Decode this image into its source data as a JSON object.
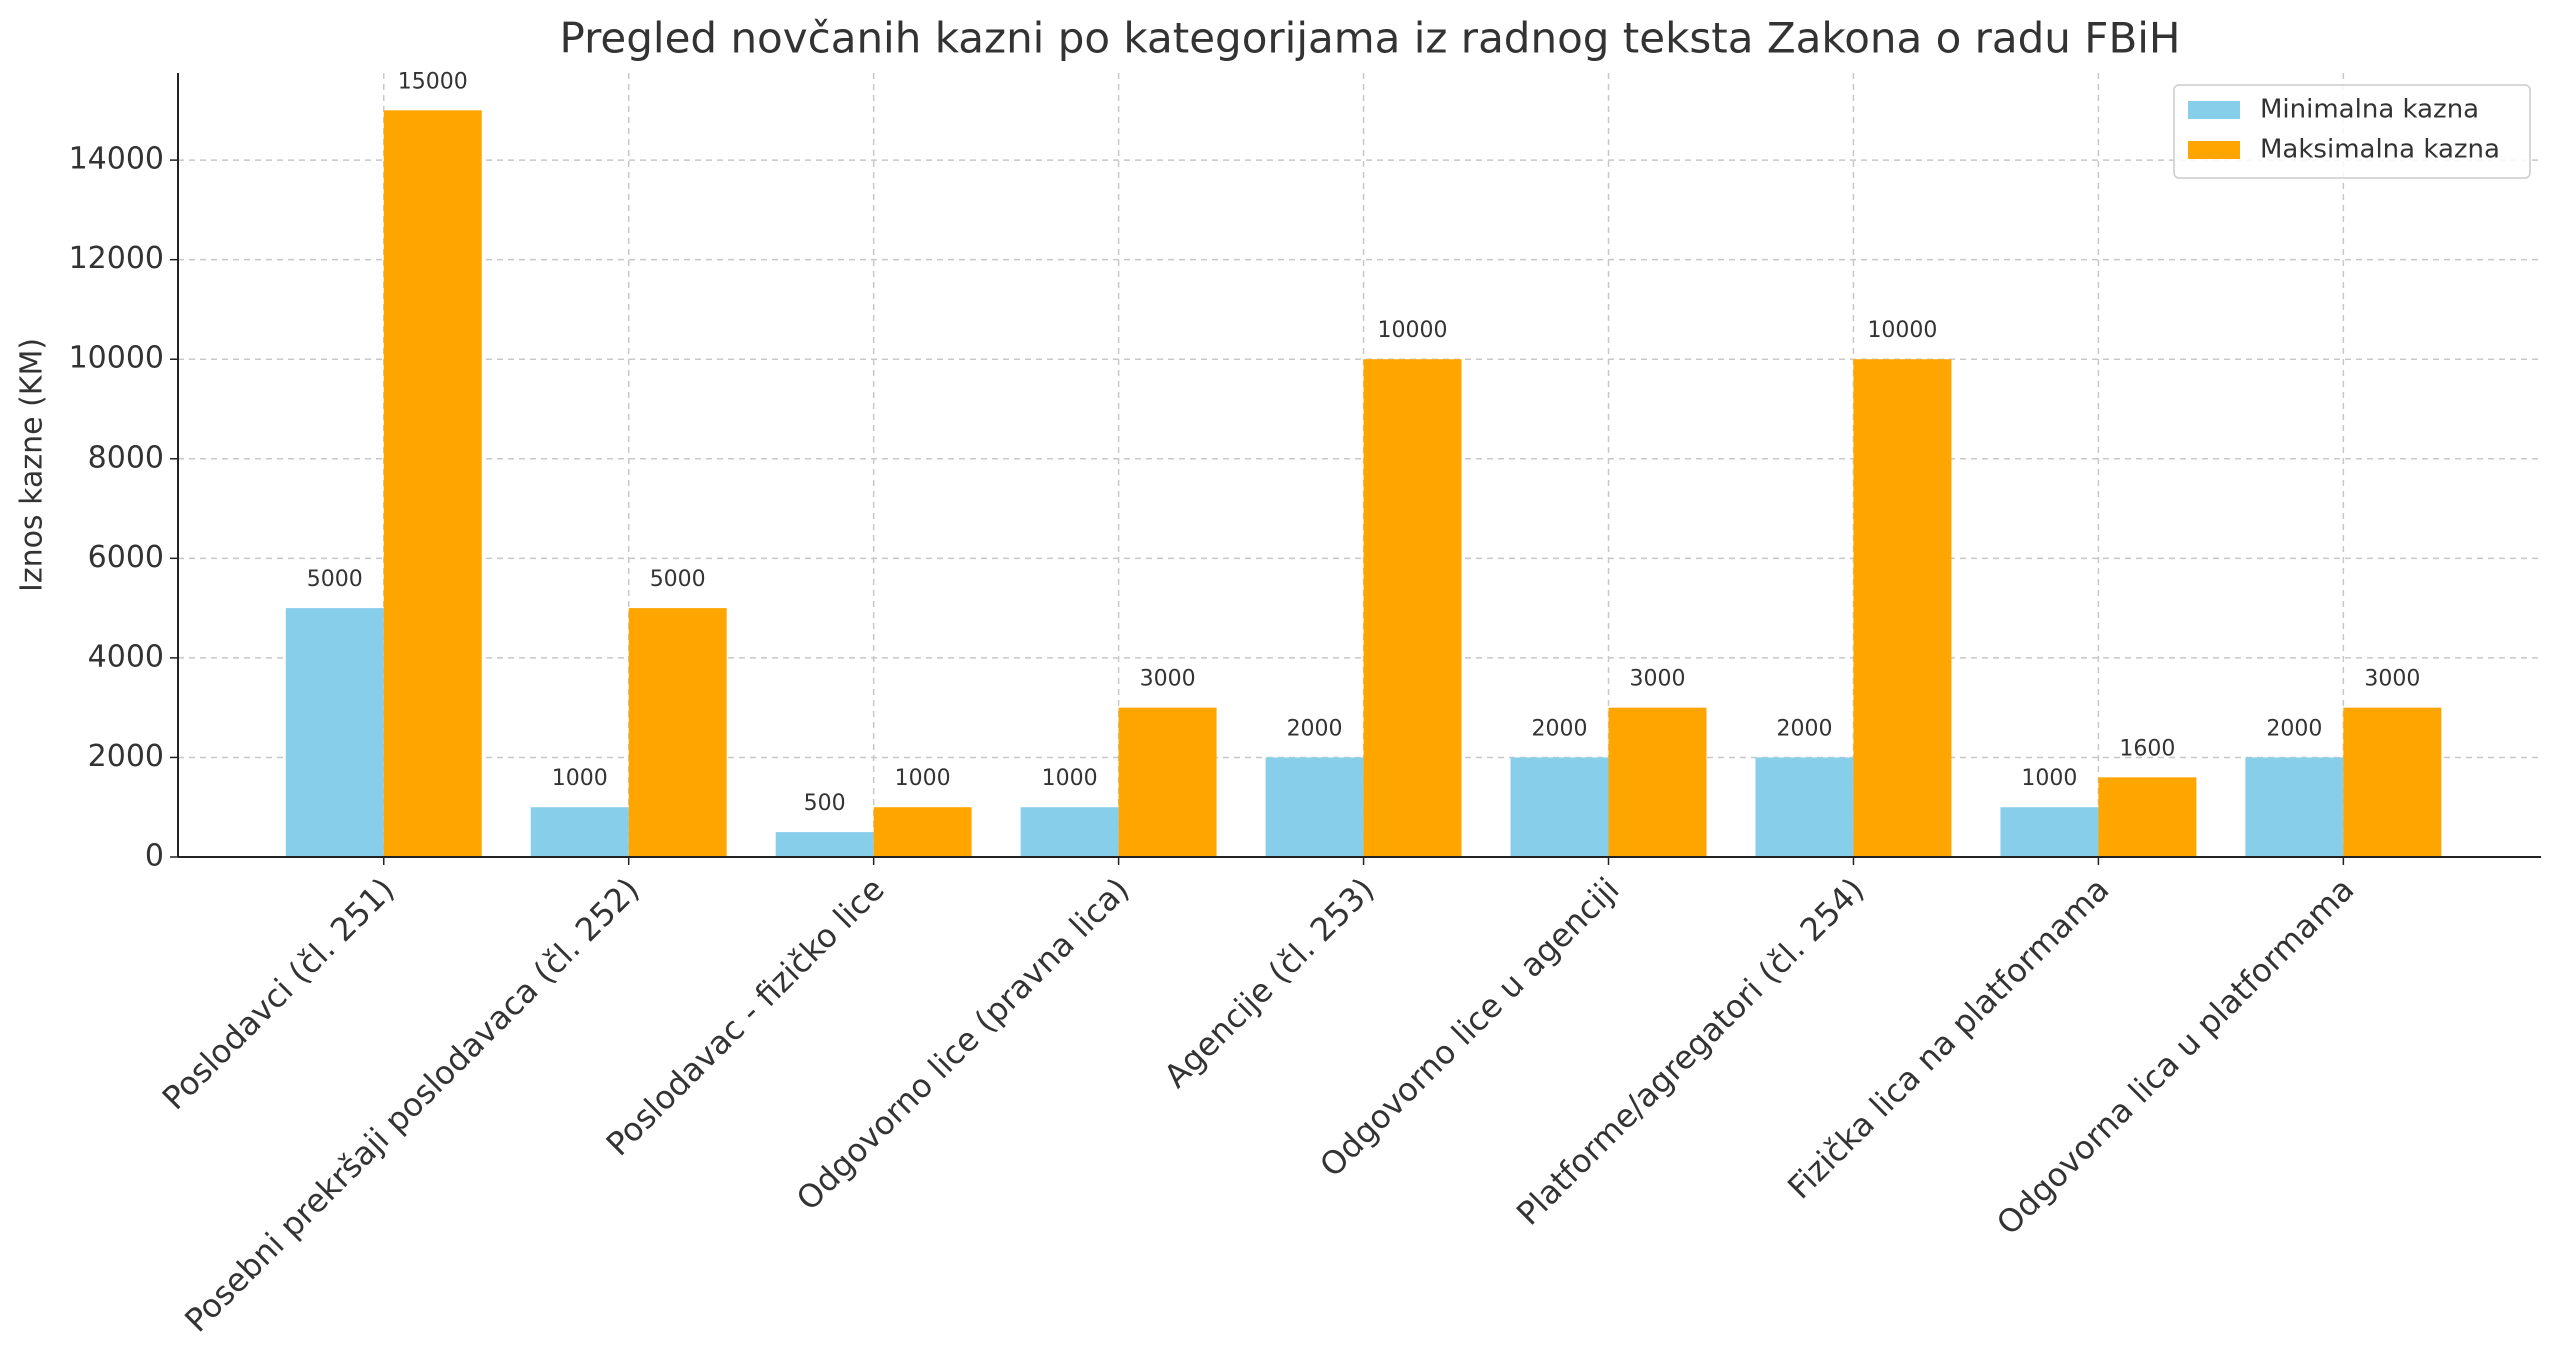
{
  "chart_data": {
    "type": "bar",
    "title": "Pregled novčanih kazni po kategorijama iz radnog teksta Zakona o radu FBiH",
    "y_label": "Iznos kazne (KM)",
    "categories": [
      "Poslodavci (čl. 251)",
      "Posebni prekršaji poslodavaca (čl. 252)",
      "Poslodavac - fizičko lice",
      "Odgovorno lice (pravna lica)",
      "Agencije (čl. 253)",
      "Odgovorno lice u agenciji",
      "Platforme/agregatori (čl. 254)",
      "Fizička lica na platformama",
      "Odgovorna lica u platformama"
    ],
    "series": [
      {
        "name": "Minimalna kazna",
        "color": "#87ceeb",
        "values": [
          5000,
          1000,
          500,
          1000,
          2000,
          2000,
          2000,
          1000,
          2000
        ]
      },
      {
        "name": "Maksimalna kazna",
        "color": "#ffa500",
        "values": [
          15000,
          5000,
          1000,
          3000,
          10000,
          3000,
          10000,
          1600,
          3000
        ]
      }
    ],
    "ylim": [
      0,
      15750
    ],
    "yticks": [
      0,
      2000,
      4000,
      6000,
      8000,
      10000,
      12000,
      14000
    ],
    "grid": true,
    "legend": "upper right"
  }
}
